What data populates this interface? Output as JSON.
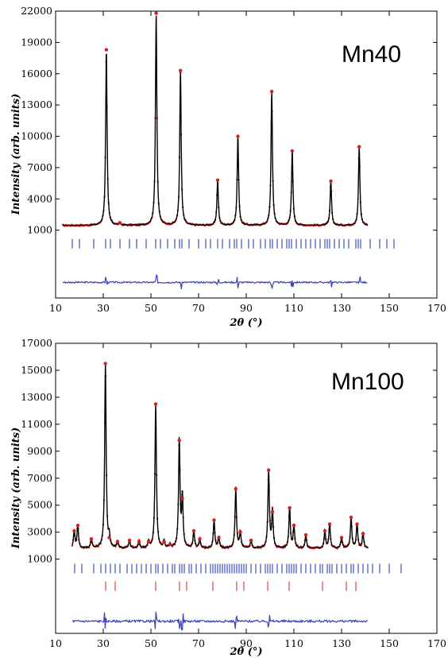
{
  "chart_data": [
    {
      "type": "line",
      "sample_label": "Mn40",
      "ylabel": "Intensity (arb. units)",
      "xlabel": "2θ (°)",
      "xlim": [
        10,
        170
      ],
      "xticks": [
        10,
        30,
        50,
        70,
        90,
        110,
        130,
        150,
        170
      ],
      "yticks": [
        1000,
        4000,
        7000,
        10000,
        13000,
        16000,
        19000,
        22000
      ],
      "ylim": [
        -5500,
        22000
      ],
      "x_range": [
        13,
        141
      ],
      "background": 1450,
      "noise": 80,
      "peaks": [
        {
          "x": 31.3,
          "y": 18300
        },
        {
          "x": 37.0,
          "y": 1700
        },
        {
          "x": 52.2,
          "y": 21800
        },
        {
          "x": 62.4,
          "y": 16300
        },
        {
          "x": 78.0,
          "y": 5800
        },
        {
          "x": 86.5,
          "y": 10000
        },
        {
          "x": 100.7,
          "y": 14300
        },
        {
          "x": 109.3,
          "y": 8600
        },
        {
          "x": 125.5,
          "y": 5700
        },
        {
          "x": 137.4,
          "y": 9000
        }
      ],
      "tick_rows": [
        {
          "color": "#2a3fbf",
          "y": -300,
          "positions": [
            17,
            20,
            26,
            31,
            33,
            37,
            41,
            44,
            48,
            52,
            54,
            57,
            60,
            62,
            63,
            66,
            70,
            73,
            75,
            78,
            80,
            83,
            85,
            86,
            88,
            91,
            93,
            96,
            98,
            100,
            101,
            103,
            105,
            107,
            108,
            109,
            111,
            113,
            115,
            117,
            119,
            121,
            123,
            124,
            125,
            127,
            129,
            131,
            133,
            136,
            137,
            138,
            142,
            146,
            149,
            152
          ]
        }
      ],
      "difference_y": -4000
    },
    {
      "type": "line",
      "sample_label": "Mn100",
      "ylabel": "Intensity (arb. units)",
      "xlabel": "2θ (°)",
      "xlim": [
        10,
        170
      ],
      "xticks": [
        10,
        30,
        50,
        70,
        90,
        110,
        130,
        150,
        170
      ],
      "yticks": [
        1000,
        3000,
        5000,
        7000,
        9000,
        11000,
        13000,
        15000,
        17000
      ],
      "ylim": [
        -4500,
        17000
      ],
      "x_range": [
        17,
        141
      ],
      "background": 1800,
      "noise": 90,
      "peaks": [
        {
          "x": 17.8,
          "y": 3100
        },
        {
          "x": 19.3,
          "y": 3500
        },
        {
          "x": 25.0,
          "y": 2500
        },
        {
          "x": 30.9,
          "y": 15500
        },
        {
          "x": 32.5,
          "y": 2600
        },
        {
          "x": 36.0,
          "y": 2300
        },
        {
          "x": 41.0,
          "y": 2400
        },
        {
          "x": 45.0,
          "y": 2300
        },
        {
          "x": 49.0,
          "y": 2300
        },
        {
          "x": 52.0,
          "y": 12500
        },
        {
          "x": 55.5,
          "y": 2300
        },
        {
          "x": 58.0,
          "y": 2100
        },
        {
          "x": 61.9,
          "y": 9800
        },
        {
          "x": 63.2,
          "y": 5500
        },
        {
          "x": 68.0,
          "y": 3100
        },
        {
          "x": 70.5,
          "y": 2500
        },
        {
          "x": 76.5,
          "y": 3900
        },
        {
          "x": 78.5,
          "y": 2600
        },
        {
          "x": 85.6,
          "y": 6200
        },
        {
          "x": 87.5,
          "y": 3000
        },
        {
          "x": 92.0,
          "y": 2400
        },
        {
          "x": 99.4,
          "y": 7600
        },
        {
          "x": 101.0,
          "y": 4500
        },
        {
          "x": 108.2,
          "y": 4800
        },
        {
          "x": 110.0,
          "y": 3500
        },
        {
          "x": 115.0,
          "y": 2800
        },
        {
          "x": 123.0,
          "y": 3100
        },
        {
          "x": 125.0,
          "y": 3600
        },
        {
          "x": 130.0,
          "y": 2600
        },
        {
          "x": 134.0,
          "y": 4100
        },
        {
          "x": 136.5,
          "y": 3600
        },
        {
          "x": 139.0,
          "y": 2900
        }
      ],
      "tick_rows": [
        {
          "color": "#2a3fbf",
          "y": 300,
          "positions": [
            18,
            21,
            26,
            29,
            31,
            33,
            35,
            37,
            40,
            42,
            44,
            46,
            48,
            50,
            52,
            53,
            55,
            57,
            59,
            60,
            62,
            63,
            64,
            66,
            67,
            69,
            71,
            73,
            75,
            76,
            77,
            78,
            79,
            80,
            81,
            82,
            83,
            84,
            85,
            86,
            87,
            88,
            89,
            90,
            92,
            94,
            96,
            98,
            99,
            100,
            101,
            103,
            105,
            107,
            108,
            109,
            110,
            111,
            113,
            115,
            117,
            119,
            121,
            122,
            124,
            125,
            126,
            128,
            130,
            132,
            134,
            135,
            137,
            139,
            141,
            143,
            146,
            150,
            155
          ]
        },
        {
          "color": "#e03030",
          "y": -1000,
          "positions": [
            31,
            35,
            52,
            62,
            65,
            76,
            86,
            89,
            99,
            108,
            122,
            132,
            136
          ]
        }
      ],
      "difference_y": -3600
    }
  ]
}
